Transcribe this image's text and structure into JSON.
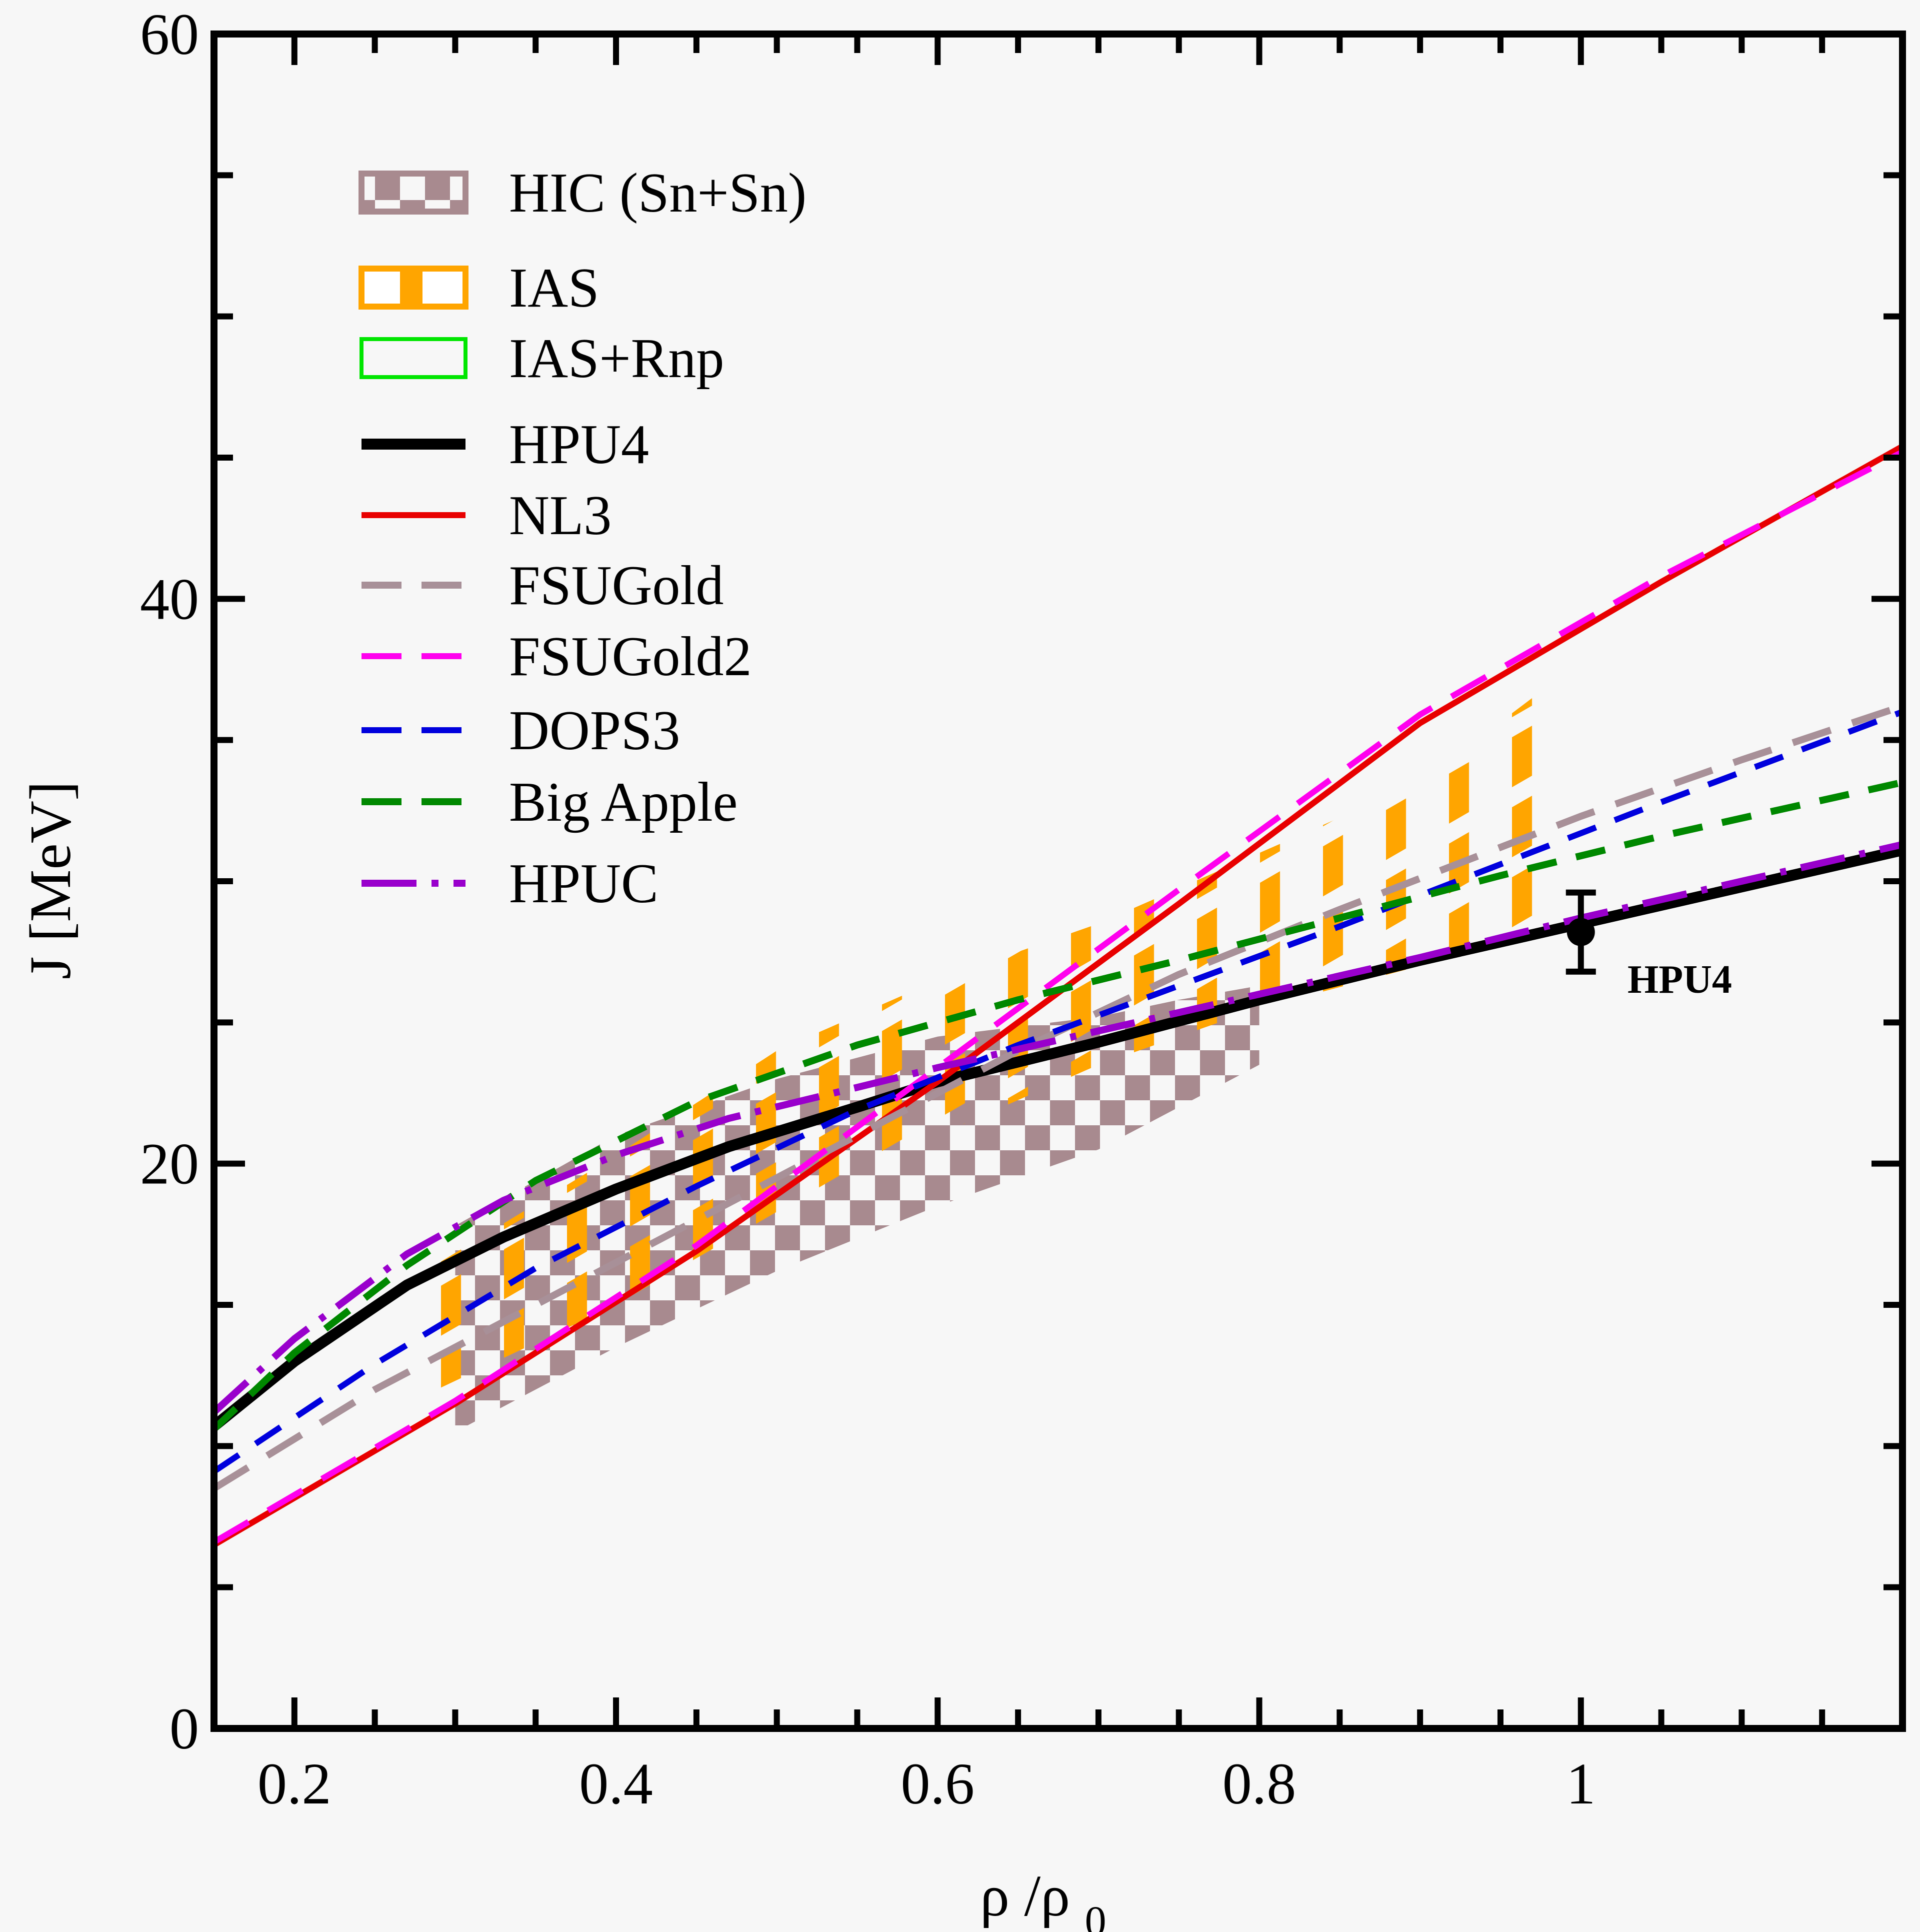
{
  "chart_data": {
    "type": "line",
    "xlabel": "ρ /ρ",
    "xlabel_sub": "0",
    "ylabel": "J [MeV]",
    "xlim": [
      0.15,
      1.2
    ],
    "ylim": [
      0,
      60
    ],
    "x_ticks": [
      0.2,
      0.4,
      0.6,
      0.8,
      1.0
    ],
    "x_tick_labels": [
      "0.2",
      "0.4",
      "0.6",
      "0.8",
      "1"
    ],
    "y_ticks": [
      0,
      20,
      40,
      60
    ],
    "y_tick_labels": [
      "0",
      "20",
      "40",
      "60"
    ],
    "grid": false,
    "legend_position": "top-left",
    "bands": [
      {
        "name": "HIC (Sn+Sn)",
        "color": "#a88a8f",
        "x": [
          0.3,
          0.4,
          0.5,
          0.6,
          0.7,
          0.75,
          0.8
        ],
        "y_low": [
          10.5,
          13.5,
          16.2,
          18.5,
          20.5,
          22.0,
          23.5
        ],
        "y_high": [
          17.8,
          21.0,
          23.0,
          24.5,
          25.2,
          25.8,
          26.3
        ]
      },
      {
        "name": "IAS",
        "color": "#ffa500",
        "x": [
          0.27,
          0.4,
          0.5,
          0.6,
          0.7,
          0.8,
          0.9,
          0.97
        ],
        "y_low": [
          11.5,
          15.0,
          18.2,
          21.0,
          23.5,
          25.5,
          27.0,
          28.0
        ],
        "y_high": [
          15.8,
          20.3,
          24.0,
          26.5,
          28.5,
          31.0,
          33.5,
          36.5
        ]
      },
      {
        "name": "IAS+Rnp",
        "color": "#00e600",
        "x": [],
        "y_low": [],
        "y_high": []
      }
    ],
    "series": [
      {
        "name": "HPU4",
        "color": "#000000",
        "dash": "solid",
        "width": 22,
        "x": [
          0.15,
          0.2,
          0.27,
          0.33,
          0.4,
          0.47,
          0.55,
          0.6,
          0.7,
          0.8,
          0.9,
          1.0,
          1.1,
          1.2
        ],
        "y": [
          10.7,
          13.0,
          15.7,
          17.4,
          19.1,
          20.6,
          22.0,
          22.9,
          24.3,
          25.8,
          27.2,
          28.5,
          29.8,
          31.1
        ]
      },
      {
        "name": "NL3",
        "color": "#e80000",
        "dash": "solid",
        "width": 12,
        "x": [
          0.15,
          0.3,
          0.45,
          0.6,
          0.75,
          0.9,
          1.05,
          1.2
        ],
        "y": [
          6.5,
          11.5,
          16.9,
          22.9,
          29.2,
          35.6,
          40.6,
          45.4
        ]
      },
      {
        "name": "FSUGold",
        "color": "#a89098",
        "dash": "long-dash",
        "width": 14,
        "x": [
          0.15,
          0.25,
          0.35,
          0.45,
          0.55,
          0.65,
          0.75,
          0.85,
          1.0,
          1.1,
          1.2
        ],
        "y": [
          8.5,
          12.0,
          15.0,
          18.0,
          21.0,
          24.0,
          26.7,
          29.0,
          32.3,
          34.3,
          36.2
        ]
      },
      {
        "name": "FSUGold2",
        "color": "#ff00ee",
        "dash": "long-dash",
        "width": 12,
        "x": [
          0.15,
          0.3,
          0.45,
          0.6,
          0.75,
          0.9,
          1.05,
          1.2
        ],
        "y": [
          6.6,
          11.6,
          17.1,
          23.4,
          29.7,
          35.9,
          40.8,
          45.2
        ]
      },
      {
        "name": "DOPS3",
        "color": "#0000dd",
        "dash": "dash",
        "width": 12,
        "x": [
          0.15,
          0.25,
          0.35,
          0.45,
          0.55,
          0.65,
          0.75,
          0.85,
          0.95,
          1.05,
          1.2
        ],
        "y": [
          9.1,
          12.9,
          16.3,
          19.2,
          21.9,
          24.2,
          26.3,
          28.4,
          30.6,
          32.8,
          36.0
        ]
      },
      {
        "name": "Big Apple",
        "color": "#008800",
        "dash": "dash",
        "width": 14,
        "x": [
          0.15,
          0.2,
          0.27,
          0.35,
          0.45,
          0.55,
          0.65,
          0.75,
          0.85,
          0.95,
          1.05,
          1.2
        ],
        "y": [
          10.6,
          13.3,
          16.4,
          19.4,
          22.2,
          24.2,
          25.8,
          27.2,
          28.7,
          30.2,
          31.6,
          33.5
        ]
      },
      {
        "name": "HPUC",
        "color": "#9900cc",
        "dash": "dash-dot",
        "width": 14,
        "x": [
          0.15,
          0.2,
          0.27,
          0.33,
          0.4,
          0.47,
          0.55,
          0.6,
          0.7,
          0.8,
          0.9,
          1.0,
          1.1,
          1.2
        ],
        "y": [
          11.2,
          13.8,
          16.8,
          18.7,
          20.3,
          21.6,
          22.7,
          23.4,
          24.7,
          26.0,
          27.3,
          28.7,
          30.0,
          31.3
        ]
      }
    ],
    "error_bar": {
      "label": "HPU4",
      "x": 1.0,
      "y": 28.2,
      "y_err": 1.4,
      "color": "#000000"
    }
  }
}
